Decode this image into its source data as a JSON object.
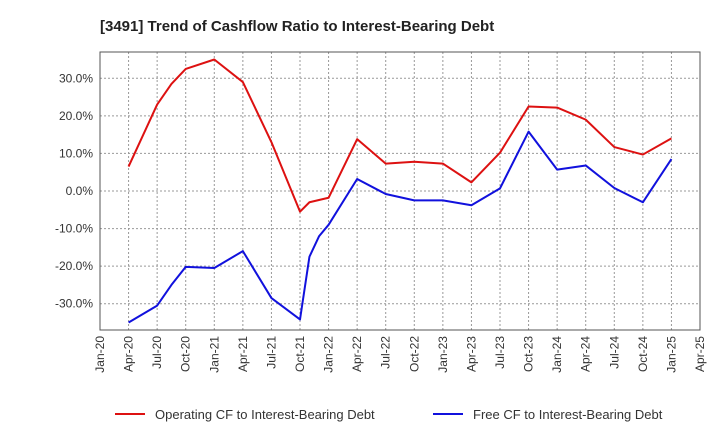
{
  "chart_data": {
    "type": "line",
    "title": "[3491]  Trend of Cashflow Ratio to Interest-Bearing Debt",
    "xlabel": "",
    "ylabel": "",
    "x_ticks": [
      "Jan-20",
      "Apr-20",
      "Jul-20",
      "Oct-20",
      "Jan-21",
      "Apr-21",
      "Jul-21",
      "Oct-21",
      "Jan-22",
      "Apr-22",
      "Jul-22",
      "Oct-22",
      "Jan-23",
      "Apr-23",
      "Jul-23",
      "Oct-23",
      "Jan-24",
      "Apr-24",
      "Jul-24",
      "Oct-24",
      "Jan-25",
      "Apr-25"
    ],
    "y_ticks": [
      {
        "value": 30,
        "label": "30.0%"
      },
      {
        "value": 20,
        "label": "20.0%"
      },
      {
        "value": 10,
        "label": "10.0%"
      },
      {
        "value": 0,
        "label": "0.0%"
      },
      {
        "value": -10,
        "label": "-10.0%"
      },
      {
        "value": -20,
        "label": "-20.0%"
      },
      {
        "value": -30,
        "label": "-30.0%"
      }
    ],
    "ylim": [
      -37,
      37
    ],
    "xlim": [
      0,
      21
    ],
    "grid": true,
    "legend_position": "bottom",
    "series": [
      {
        "name": "Operating CF to Interest-Bearing Debt",
        "color": "#dd1111",
        "points": [
          {
            "x": 1,
            "y": 6.5
          },
          {
            "x": 2,
            "y": 23.0
          },
          {
            "x": 2.5,
            "y": 28.5
          },
          {
            "x": 3,
            "y": 32.5
          },
          {
            "x": 4,
            "y": 35.0
          },
          {
            "x": 5,
            "y": 29.0
          },
          {
            "x": 6,
            "y": 13.0
          },
          {
            "x": 7,
            "y": -5.5
          },
          {
            "x": 7.33,
            "y": -3.0
          },
          {
            "x": 8,
            "y": -1.8
          },
          {
            "x": 9,
            "y": 13.8
          },
          {
            "x": 10,
            "y": 7.3
          },
          {
            "x": 11,
            "y": 7.8
          },
          {
            "x": 12,
            "y": 7.3
          },
          {
            "x": 13,
            "y": 2.3
          },
          {
            "x": 14,
            "y": 10.2
          },
          {
            "x": 15,
            "y": 22.5
          },
          {
            "x": 16,
            "y": 22.2
          },
          {
            "x": 17,
            "y": 19.0
          },
          {
            "x": 18,
            "y": 11.7
          },
          {
            "x": 19,
            "y": 9.7
          },
          {
            "x": 20,
            "y": 14.0
          }
        ]
      },
      {
        "name": "Free CF to Interest-Bearing Debt",
        "color": "#1111dd",
        "points": [
          {
            "x": 1,
            "y": -35.0
          },
          {
            "x": 2,
            "y": -30.5
          },
          {
            "x": 2.5,
            "y": -25.0
          },
          {
            "x": 3,
            "y": -20.2
          },
          {
            "x": 4,
            "y": -20.5
          },
          {
            "x": 5,
            "y": -16.0
          },
          {
            "x": 6,
            "y": -28.5
          },
          {
            "x": 7,
            "y": -34.2
          },
          {
            "x": 7.33,
            "y": -17.5
          },
          {
            "x": 7.67,
            "y": -12.0
          },
          {
            "x": 8,
            "y": -9.0
          },
          {
            "x": 9,
            "y": 3.2
          },
          {
            "x": 10,
            "y": -0.8
          },
          {
            "x": 11,
            "y": -2.5
          },
          {
            "x": 12,
            "y": -2.5
          },
          {
            "x": 13,
            "y": -3.8
          },
          {
            "x": 14,
            "y": 0.7
          },
          {
            "x": 15,
            "y": 15.8
          },
          {
            "x": 16,
            "y": 5.7
          },
          {
            "x": 17,
            "y": 6.8
          },
          {
            "x": 18,
            "y": 0.8
          },
          {
            "x": 19,
            "y": -3.0
          },
          {
            "x": 20,
            "y": 8.5
          }
        ]
      }
    ]
  }
}
